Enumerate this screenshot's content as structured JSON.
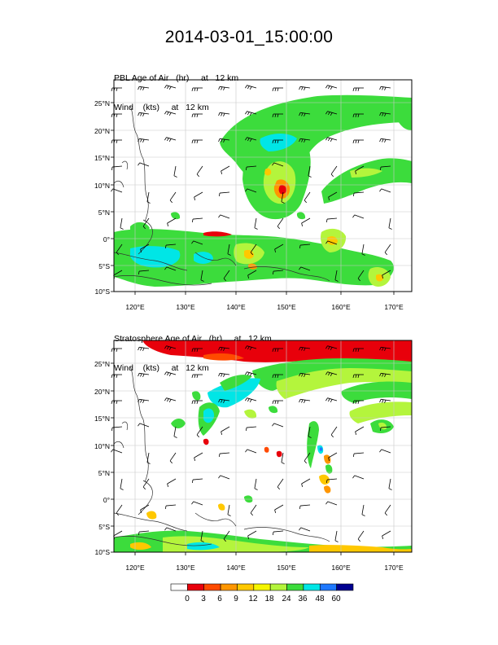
{
  "title": "2014-03-01_15:00:00",
  "panels": [
    {
      "id": "pbl",
      "label_line1": "PBL Age of Air   (hr)     at   12 km",
      "label_line2": "Wind    (kts)     at   12 km",
      "lat_labels": [
        "25°N",
        "20°N",
        "15°N",
        "10°N",
        "5°N",
        "0°",
        "5°S",
        "10°S"
      ],
      "lon_labels": [
        "120°E",
        "130°E",
        "140°E",
        "150°E",
        "160°E",
        "170°E"
      ]
    },
    {
      "id": "strat",
      "label_line1": "Stratosphere Age of Air   (hr)     at   12 km",
      "label_line2": "Wind    (kts)     at   12 km",
      "lat_labels": [
        "25°N",
        "20°N",
        "15°N",
        "10°N",
        "5°N",
        "0°",
        "5°S",
        "10°S"
      ],
      "lon_labels": [
        "120°E",
        "130°E",
        "140°E",
        "150°E",
        "160°E",
        "170°E"
      ]
    }
  ],
  "colorbar": {
    "labels": [
      "0",
      "3",
      "6",
      "9",
      "12",
      "18",
      "24",
      "36",
      "48",
      "60"
    ],
    "colors": [
      "#ffffff",
      "#e8000b",
      "#ff4a00",
      "#ff9600",
      "#ffc800",
      "#f5f500",
      "#b4f53c",
      "#3cdc3c",
      "#00e6e6",
      "#1e78ff",
      "#000090"
    ]
  },
  "colors": {
    "grid": "#c8c8c8",
    "coast": "#303030",
    "barb": "#000000"
  }
}
